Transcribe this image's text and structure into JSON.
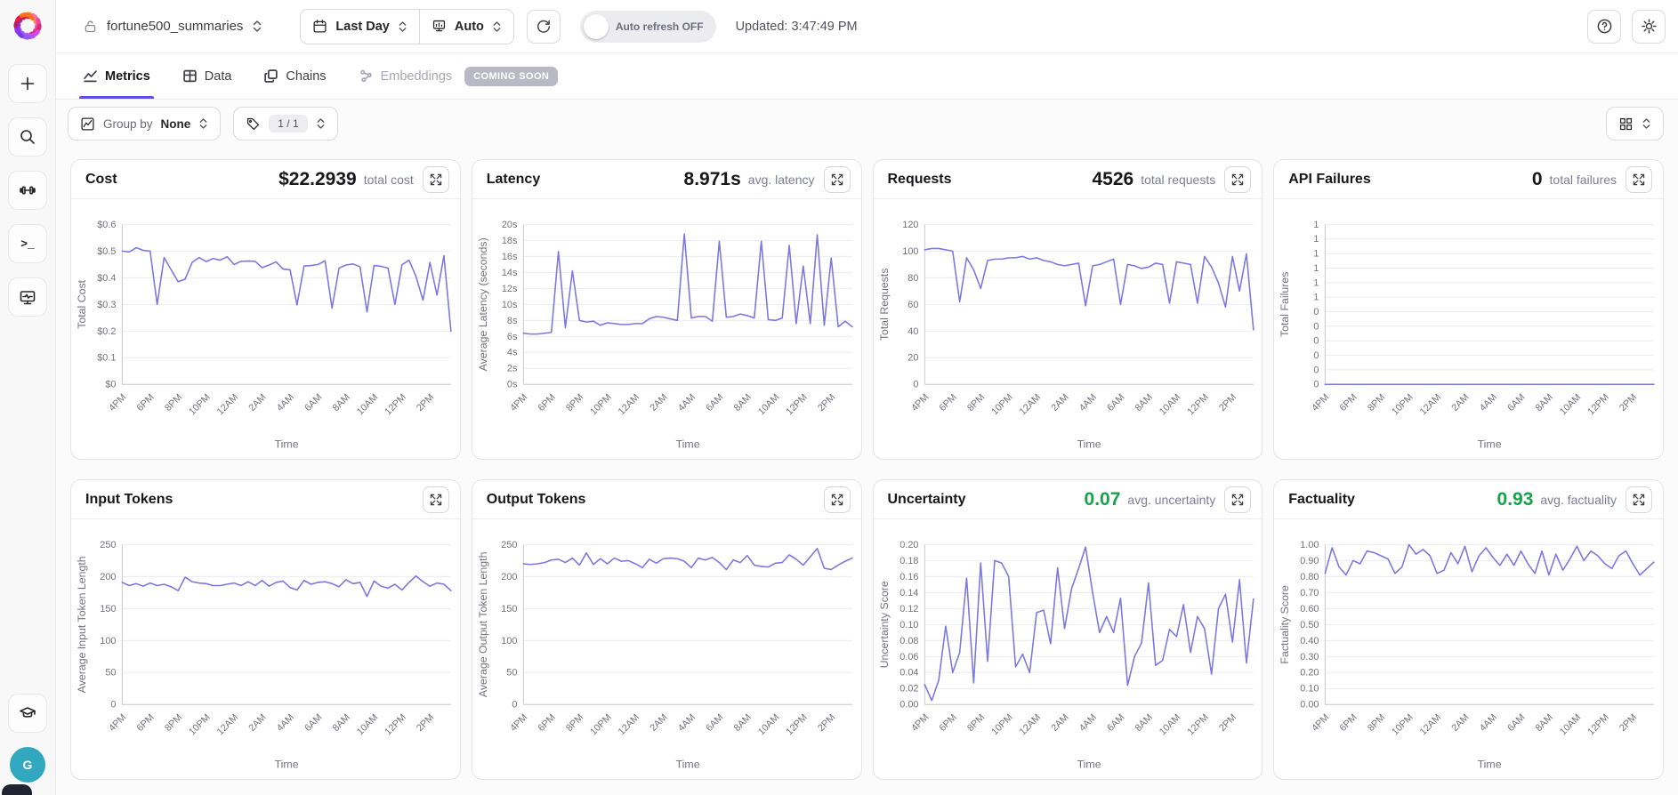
{
  "colors": {
    "accent": "#5b50e8",
    "line": "#7e76e3",
    "green": "#16a34a",
    "avatar_bg": "#31a8bf"
  },
  "logo_colors": [
    "#fb923c",
    "#f472b6",
    "#ec4899",
    "#db2777",
    "#d946ef",
    "#a855f7",
    "#8b5cf6",
    "#7c3aed",
    "#9333ea",
    "#be185d",
    "#e11d48",
    "#f97316"
  ],
  "sidebar": {
    "avatar_initial": "G",
    "terminal_glyph": ">_"
  },
  "header": {
    "project_name": "fortune500_summaries",
    "time_range": "Last Day",
    "aggregation": "Auto",
    "auto_refresh_label": "Auto refresh OFF",
    "updated": "Updated: 3:47:49 PM"
  },
  "tabs": [
    {
      "label": "Metrics",
      "active": true
    },
    {
      "label": "Data",
      "active": false
    },
    {
      "label": "Chains",
      "active": false
    },
    {
      "label": "Embeddings",
      "active": false,
      "badge": "COMING SOON"
    }
  ],
  "filters": {
    "group_by_label": "Group by",
    "group_by_value": "None",
    "tag_count": "1 / 1"
  },
  "chart_data": [
    {
      "type": "line",
      "title": "Cost",
      "value": "$22.2939",
      "value_label": "total cost",
      "value_color": "#18181b",
      "xlabel": "Time",
      "ylabel": "Total Cost",
      "ymin": 0,
      "ymax": 0.6,
      "ytick_values": [
        0,
        0.1,
        0.2,
        0.3,
        0.4,
        0.5,
        0.6
      ],
      "ytick_labels": [
        "$0",
        "$0.1",
        "$0.2",
        "$0.3",
        "$0.4",
        "$0.5",
        "$0.6"
      ],
      "x_ticks": [
        "4PM",
        "6PM",
        "8PM",
        "10PM",
        "12AM",
        "2AM",
        "4AM",
        "6AM",
        "8AM",
        "10AM",
        "12PM",
        "2PM"
      ],
      "x_tick_every": 4,
      "values": [
        0.5,
        0.497,
        0.513,
        0.503,
        0.5,
        0.3,
        0.476,
        0.43,
        0.385,
        0.395,
        0.458,
        0.476,
        0.461,
        0.472,
        0.466,
        0.479,
        0.45,
        0.462,
        0.463,
        0.462,
        0.438,
        0.448,
        0.46,
        0.433,
        0.43,
        0.298,
        0.444,
        0.446,
        0.45,
        0.464,
        0.286,
        0.436,
        0.448,
        0.452,
        0.441,
        0.272,
        0.446,
        0.443,
        0.436,
        0.3,
        0.449,
        0.466,
        0.405,
        0.316,
        0.458,
        0.335,
        0.483,
        0.2
      ]
    },
    {
      "type": "line",
      "title": "Latency",
      "value": "8.971s",
      "value_label": "avg. latency",
      "value_color": "#18181b",
      "xlabel": "Time",
      "ylabel": "Average Latency (seconds)",
      "ymin": 0,
      "ymax": 20,
      "ytick_values": [
        0,
        2,
        4,
        6,
        8,
        10,
        12,
        14,
        16,
        18,
        20
      ],
      "ytick_labels": [
        "0s",
        "2s",
        "4s",
        "6s",
        "8s",
        "10s",
        "12s",
        "14s",
        "16s",
        "18s",
        "20s"
      ],
      "x_ticks": [
        "4PM",
        "6PM",
        "8PM",
        "10PM",
        "12AM",
        "2AM",
        "4AM",
        "6AM",
        "8AM",
        "10AM",
        "12PM",
        "2PM"
      ],
      "x_tick_every": 4,
      "values": [
        6.4,
        6.3,
        6.3,
        6.4,
        6.5,
        16.6,
        7.1,
        14.2,
        8.0,
        7.8,
        7.9,
        7.4,
        7.7,
        7.6,
        7.5,
        7.5,
        7.6,
        7.6,
        8.2,
        8.5,
        8.4,
        8.2,
        8.0,
        18.8,
        8.3,
        8.5,
        8.5,
        7.9,
        17.9,
        8.4,
        8.5,
        8.8,
        8.6,
        8.3,
        17.9,
        8.1,
        8.0,
        8.3,
        17.4,
        7.6,
        14.8,
        7.6,
        18.7,
        7.4,
        15.8,
        7.2,
        7.9,
        7.2
      ]
    },
    {
      "type": "line",
      "title": "Requests",
      "value": "4526",
      "value_label": "total requests",
      "value_color": "#18181b",
      "xlabel": "Time",
      "ylabel": "Total Requests",
      "ymin": 0,
      "ymax": 120,
      "ytick_values": [
        0,
        20,
        40,
        60,
        80,
        100,
        120
      ],
      "ytick_labels": [
        "0",
        "20",
        "40",
        "60",
        "80",
        "100",
        "120"
      ],
      "x_ticks": [
        "4PM",
        "6PM",
        "8PM",
        "10PM",
        "12AM",
        "2AM",
        "4AM",
        "6AM",
        "8AM",
        "10AM",
        "12PM",
        "2PM"
      ],
      "x_tick_every": 4,
      "values": [
        101,
        102,
        102,
        101,
        100,
        62,
        95,
        86,
        72,
        93,
        94,
        94,
        95,
        95,
        96,
        94,
        95,
        93,
        92,
        90,
        89,
        90,
        91,
        59,
        89,
        90,
        92,
        94,
        60,
        90,
        89,
        87,
        88,
        91,
        90,
        61,
        92,
        91,
        90,
        61,
        96,
        88,
        76,
        58,
        96,
        70,
        98,
        41
      ]
    },
    {
      "type": "line",
      "title": "API Failures",
      "value": "0",
      "value_label": "total failures",
      "value_color": "#18181b",
      "xlabel": "Time",
      "ylabel": "Total Failures",
      "ymin": 0,
      "ymax": 1.1,
      "ytick_values": [
        0,
        0.1,
        0.2,
        0.3,
        0.4,
        0.5,
        0.6,
        0.7,
        0.8,
        0.9,
        1.0,
        1.1
      ],
      "ytick_labels": [
        "0",
        "0",
        "0",
        "0",
        "0",
        "0",
        "1",
        "1",
        "1",
        "1",
        "1",
        "1"
      ],
      "x_ticks": [
        "4PM",
        "6PM",
        "8PM",
        "10PM",
        "12AM",
        "2AM",
        "4AM",
        "6AM",
        "8AM",
        "10AM",
        "12PM",
        "2PM"
      ],
      "x_tick_every": 4,
      "values": [
        0,
        0,
        0,
        0,
        0,
        0,
        0,
        0,
        0,
        0,
        0,
        0,
        0,
        0,
        0,
        0,
        0,
        0,
        0,
        0,
        0,
        0,
        0,
        0,
        0,
        0,
        0,
        0,
        0,
        0,
        0,
        0,
        0,
        0,
        0,
        0,
        0,
        0,
        0,
        0,
        0,
        0,
        0,
        0,
        0,
        0,
        0,
        0
      ]
    },
    {
      "type": "line",
      "title": "Input Tokens",
      "value": "",
      "value_label": "",
      "value_color": "#18181b",
      "xlabel": "Time",
      "ylabel": "Average Input Token Length",
      "ymin": 0,
      "ymax": 250,
      "ytick_values": [
        0,
        50,
        100,
        150,
        200,
        250
      ],
      "ytick_labels": [
        "0",
        "50",
        "100",
        "150",
        "200",
        "250"
      ],
      "x_ticks": [
        "4PM",
        "6PM",
        "8PM",
        "10PM",
        "12AM",
        "2AM",
        "4AM",
        "6AM",
        "8AM",
        "10AM",
        "12PM",
        "2PM"
      ],
      "x_tick_every": 4,
      "values": [
        191,
        186,
        189,
        185,
        190,
        186,
        188,
        184,
        178,
        199,
        192,
        190,
        189,
        186,
        186,
        188,
        190,
        186,
        192,
        186,
        194,
        185,
        191,
        193,
        183,
        179,
        194,
        188,
        191,
        192,
        189,
        184,
        195,
        189,
        191,
        169,
        193,
        185,
        182,
        188,
        179,
        191,
        201,
        192,
        185,
        190,
        188,
        178
      ]
    },
    {
      "type": "line",
      "title": "Output Tokens",
      "value": "",
      "value_label": "",
      "value_color": "#18181b",
      "xlabel": "Time",
      "ylabel": "Average Output Token Length",
      "ymin": 0,
      "ymax": 250,
      "ytick_values": [
        0,
        50,
        100,
        150,
        200,
        250
      ],
      "ytick_labels": [
        "0",
        "50",
        "100",
        "150",
        "200",
        "250"
      ],
      "x_ticks": [
        "4PM",
        "6PM",
        "8PM",
        "10PM",
        "12AM",
        "2AM",
        "4AM",
        "6AM",
        "8AM",
        "10AM",
        "12PM",
        "2PM"
      ],
      "x_tick_every": 4,
      "values": [
        220,
        219,
        220,
        222,
        226,
        227,
        222,
        229,
        218,
        237,
        219,
        228,
        220,
        229,
        224,
        225,
        220,
        214,
        227,
        221,
        228,
        229,
        228,
        224,
        214,
        229,
        226,
        230,
        222,
        211,
        226,
        222,
        233,
        218,
        216,
        215,
        221,
        222,
        234,
        227,
        218,
        231,
        244,
        213,
        211,
        218,
        224,
        229
      ]
    },
    {
      "type": "line",
      "title": "Uncertainty",
      "value": "0.07",
      "value_label": "avg. uncertainty",
      "value_color": "#16a34a",
      "xlabel": "Time",
      "ylabel": "Uncertainty Score",
      "ymin": 0,
      "ymax": 0.2,
      "ytick_values": [
        0,
        0.02,
        0.04,
        0.06,
        0.08,
        0.1,
        0.12,
        0.14,
        0.16,
        0.18,
        0.2
      ],
      "ytick_labels": [
        "0.00",
        "0.02",
        "0.04",
        "0.06",
        "0.08",
        "0.10",
        "0.12",
        "0.14",
        "0.16",
        "0.18",
        "0.20"
      ],
      "x_ticks": [
        "4PM",
        "6PM",
        "8PM",
        "10PM",
        "12AM",
        "2AM",
        "4AM",
        "6AM",
        "8AM",
        "10AM",
        "12PM",
        "2PM"
      ],
      "x_tick_every": 4,
      "values": [
        0.025,
        0.005,
        0.03,
        0.098,
        0.04,
        0.065,
        0.158,
        0.027,
        0.177,
        0.054,
        0.18,
        0.177,
        0.16,
        0.047,
        0.063,
        0.04,
        0.115,
        0.118,
        0.076,
        0.171,
        0.095,
        0.145,
        0.17,
        0.197,
        0.14,
        0.09,
        0.11,
        0.09,
        0.133,
        0.024,
        0.06,
        0.077,
        0.152,
        0.049,
        0.055,
        0.094,
        0.085,
        0.125,
        0.065,
        0.11,
        0.095,
        0.038,
        0.12,
        0.138,
        0.078,
        0.156,
        0.052,
        0.132
      ]
    },
    {
      "type": "line",
      "title": "Factuality",
      "value": "0.93",
      "value_label": "avg. factuality",
      "value_color": "#16a34a",
      "xlabel": "Time",
      "ylabel": "Factuality Score",
      "ymin": 0,
      "ymax": 1.0,
      "ytick_values": [
        0,
        0.1,
        0.2,
        0.3,
        0.4,
        0.5,
        0.6,
        0.7,
        0.8,
        0.9,
        1.0
      ],
      "ytick_labels": [
        "0.00",
        "0.10",
        "0.20",
        "0.30",
        "0.40",
        "0.50",
        "0.60",
        "0.70",
        "0.80",
        "0.90",
        "1.00"
      ],
      "x_ticks": [
        "4PM",
        "6PM",
        "8PM",
        "10PM",
        "12AM",
        "2AM",
        "4AM",
        "6AM",
        "8AM",
        "10AM",
        "12PM",
        "2PM"
      ],
      "x_tick_every": 4,
      "values": [
        0.82,
        0.98,
        0.86,
        0.81,
        0.9,
        0.88,
        0.96,
        0.95,
        0.93,
        0.91,
        0.82,
        0.86,
        1.0,
        0.94,
        0.97,
        0.93,
        0.82,
        0.84,
        0.95,
        0.88,
        0.99,
        0.83,
        0.93,
        0.98,
        0.92,
        0.87,
        0.94,
        0.87,
        0.96,
        0.88,
        0.82,
        0.96,
        0.81,
        0.94,
        0.84,
        0.91,
        0.99,
        0.9,
        0.96,
        0.93,
        0.88,
        0.85,
        0.93,
        0.96,
        0.88,
        0.81,
        0.85,
        0.89
      ]
    }
  ]
}
